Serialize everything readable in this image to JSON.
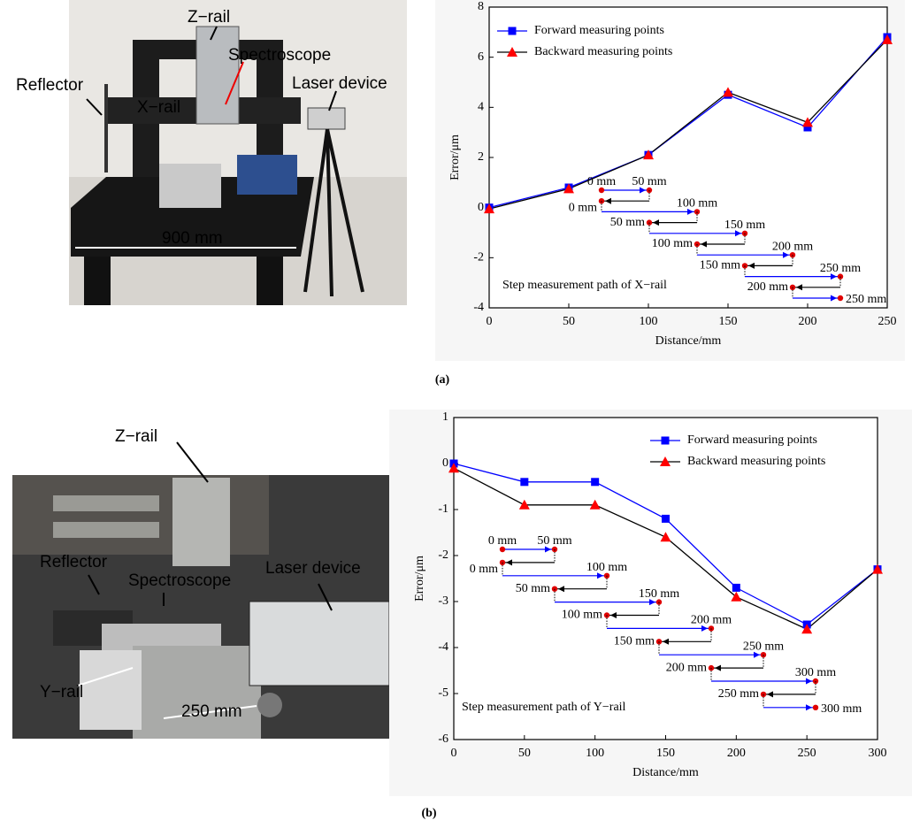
{
  "chart_data": [
    {
      "type": "line",
      "x": [
        0,
        50,
        100,
        150,
        200,
        250
      ],
      "series": [
        {
          "name": "Forward measuring points",
          "color": "#0000ff",
          "marker": "square",
          "marker_color": "#0000ff",
          "values": [
            0,
            0.8,
            2.1,
            4.5,
            3.2,
            6.8
          ]
        },
        {
          "name": "Backward measuring points",
          "color": "#000000",
          "marker": "triangle",
          "marker_color": "#ff0000",
          "values": [
            -0.05,
            0.75,
            2.1,
            4.6,
            3.4,
            6.7
          ]
        }
      ],
      "xlim": [
        0,
        250
      ],
      "ylim": [
        -4,
        8
      ],
      "xticks": [
        0,
        50,
        100,
        150,
        200,
        250
      ],
      "yticks": [
        -4,
        -2,
        0,
        2,
        4,
        6,
        8
      ],
      "x_label": "Distance/mm",
      "y_label": "Error/μm",
      "legend": "upper left",
      "annotations": [
        "0 mm",
        "50 mm",
        "0 mm",
        "100 mm",
        "50 mm",
        "150 mm",
        "100 mm",
        "200 mm",
        "150 mm",
        "250 mm",
        "200 mm",
        "250 mm"
      ],
      "path_label": "Step measurement path of X−rail"
    },
    {
      "type": "line",
      "x": [
        0,
        50,
        100,
        150,
        200,
        250,
        300
      ],
      "series": [
        {
          "name": "Forward measuring points",
          "color": "#0000ff",
          "marker": "square",
          "marker_color": "#0000ff",
          "values": [
            0,
            -0.4,
            -0.4,
            -1.2,
            -2.7,
            -3.5,
            -2.3
          ]
        },
        {
          "name": "Backward measuring points",
          "color": "#000000",
          "marker": "triangle",
          "marker_color": "#ff0000",
          "values": [
            -0.1,
            -0.9,
            -0.9,
            -1.6,
            -2.9,
            -3.6,
            -2.3
          ]
        }
      ],
      "xlim": [
        0,
        300
      ],
      "ylim": [
        -6,
        1
      ],
      "xticks": [
        0,
        50,
        100,
        150,
        200,
        250,
        300
      ],
      "yticks": [
        -6,
        -5,
        -4,
        -3,
        -2,
        -1,
        0,
        1
      ],
      "x_label": "Distance/mm",
      "y_label": "Error/μm",
      "legend": "upper right",
      "annotations": [
        "0 mm",
        "50 mm",
        "0 mm",
        "100 mm",
        "50 mm",
        "150 mm",
        "100 mm",
        "200 mm",
        "150 mm",
        "250 mm",
        "200 mm",
        "300 mm",
        "250 mm",
        "300 mm"
      ],
      "path_label": "Step measurement path of Y−rail"
    }
  ],
  "photos": [
    {
      "labels": [
        "Z−rail",
        "Spectroscope",
        "Laser device",
        "Reflector",
        "X−rail",
        "900 mm"
      ]
    },
    {
      "labels": [
        "Z−rail",
        "Reflector",
        "Spectroscope",
        "Laser device",
        "Y−rail",
        "250 mm"
      ]
    }
  ],
  "captions": [
    "(a)",
    "(b)"
  ]
}
